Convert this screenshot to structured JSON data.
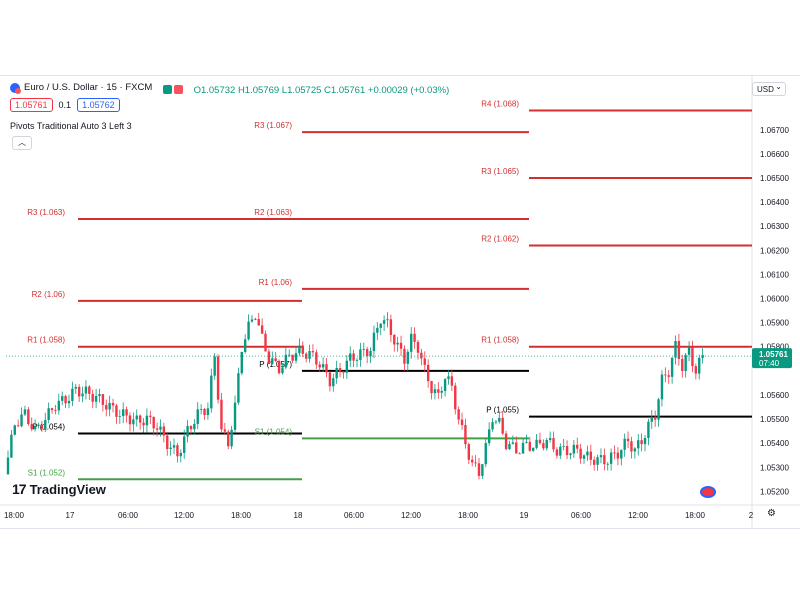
{
  "header": {
    "symbol": "Euro / U.S. Dollar · 15 · FXCM",
    "open": "O1.05732",
    "high": "H1.05769",
    "low": "L1.05725",
    "close": "C1.05761",
    "change": "+0.00029 (+0.03%)",
    "sell_price": "1.05761",
    "spread": "0.1",
    "buy_price": "1.05762",
    "indicator_name": "Pivots Traditional Auto 3 Left 3",
    "currency": "USD",
    "brand": "TradingView"
  },
  "colors": {
    "up": "#089981",
    "down": "#f23645",
    "pivot_r": "#d32f2f",
    "pivot_p": "#000000",
    "pivot_s": "#43a047",
    "price_label_bg": "#089981"
  },
  "chart_data": {
    "type": "candlestick",
    "ylim": [
      1.0516,
      1.0684
    ],
    "y_ticks": [
      "1.06700",
      "1.06600",
      "1.06500",
      "1.06400",
      "1.06300",
      "1.06200",
      "1.06100",
      "1.06000",
      "1.05900",
      "1.05800",
      "1.05600",
      "1.05500",
      "1.05400",
      "1.05300",
      "1.05200"
    ],
    "x_ticks": [
      "18:00",
      "17",
      "06:00",
      "12:00",
      "18:00",
      "18",
      "06:00",
      "12:00",
      "18:00",
      "19",
      "06:00",
      "12:00",
      "18:00",
      "2"
    ],
    "last_price": "1.05761",
    "last_price_value": 1.05761,
    "countdown": "07:40",
    "pivot_levels": [
      {
        "day": 0,
        "label": "R3 (1.063)",
        "value": 1.0633,
        "kind": "R"
      },
      {
        "day": 0,
        "label": "R2 (1.06)",
        "value": 1.0599,
        "kind": "R"
      },
      {
        "day": 0,
        "label": "R1 (1.058)",
        "value": 1.058,
        "kind": "R"
      },
      {
        "day": 0,
        "label": "P (1.054)",
        "value": 1.0544,
        "kind": "P"
      },
      {
        "day": 0,
        "label": "S1 (1.052)",
        "value": 1.0525,
        "kind": "S"
      },
      {
        "day": 1,
        "label": "R3 (1.067)",
        "value": 1.0669,
        "kind": "R"
      },
      {
        "day": 1,
        "label": "R2 (1.063)",
        "value": 1.0633,
        "kind": "R"
      },
      {
        "day": 1,
        "label": "R1 (1.06)",
        "value": 1.0604,
        "kind": "R"
      },
      {
        "day": 1,
        "label": "P (1.057)",
        "value": 1.057,
        "kind": "P"
      },
      {
        "day": 1,
        "label": "S1 (1.054)",
        "value": 1.0542,
        "kind": "S"
      },
      {
        "day": 2,
        "label": "R4 (1.068)",
        "value": 1.0678,
        "kind": "R"
      },
      {
        "day": 2,
        "label": "R3 (1.065)",
        "value": 1.065,
        "kind": "R"
      },
      {
        "day": 2,
        "label": "R2 (1.062)",
        "value": 1.0622,
        "kind": "R"
      },
      {
        "day": 2,
        "label": "R1 (1.058)",
        "value": 1.058,
        "kind": "R"
      },
      {
        "day": 2,
        "label": "P (1.055)",
        "value": 1.0551,
        "kind": "P"
      }
    ],
    "price_path": [
      [
        0,
        1.0527
      ],
      [
        3,
        1.0548
      ],
      [
        6,
        1.0552
      ],
      [
        9,
        1.0545
      ],
      [
        12,
        1.055
      ],
      [
        15,
        1.0556
      ],
      [
        18,
        1.0558
      ],
      [
        21,
        1.0562
      ],
      [
        24,
        1.0561
      ],
      [
        27,
        1.0559
      ],
      [
        30,
        1.0556
      ],
      [
        33,
        1.0553
      ],
      [
        36,
        1.0551
      ],
      [
        39,
        1.0549
      ],
      [
        42,
        1.055
      ],
      [
        45,
        1.0547
      ],
      [
        48,
        1.054
      ],
      [
        51,
        1.0535
      ],
      [
        54,
        1.0545
      ],
      [
        57,
        1.0552
      ],
      [
        60,
        1.0555
      ],
      [
        62,
        1.0576
      ],
      [
        64,
        1.0545
      ],
      [
        66,
        1.054
      ],
      [
        68,
        1.0555
      ],
      [
        70,
        1.058
      ],
      [
        72,
        1.0588
      ],
      [
        74,
        1.0594
      ],
      [
        76,
        1.0583
      ],
      [
        78,
        1.0575
      ],
      [
        81,
        1.0571
      ],
      [
        84,
        1.0576
      ],
      [
        87,
        1.0578
      ],
      [
        90,
        1.0577
      ],
      [
        93,
        1.0573
      ],
      [
        96,
        1.0566
      ],
      [
        99,
        1.057
      ],
      [
        102,
        1.0575
      ],
      [
        105,
        1.0577
      ],
      [
        108,
        1.0579
      ],
      [
        111,
        1.0592
      ],
      [
        113,
        1.0589
      ],
      [
        116,
        1.058
      ],
      [
        118,
        1.0575
      ],
      [
        120,
        1.0583
      ],
      [
        122,
        1.058
      ],
      [
        124,
        1.057
      ],
      [
        126,
        1.0563
      ],
      [
        128,
        1.0559
      ],
      [
        130,
        1.0568
      ],
      [
        132,
        1.0563
      ],
      [
        134,
        1.055
      ],
      [
        136,
        1.054
      ],
      [
        138,
        1.0531
      ],
      [
        140,
        1.0528
      ],
      [
        142,
        1.0538
      ],
      [
        144,
        1.0551
      ],
      [
        146,
        1.0548
      ],
      [
        148,
        1.054
      ],
      [
        151,
        1.0537
      ],
      [
        154,
        1.0539
      ],
      [
        157,
        1.0539
      ],
      [
        160,
        1.0541
      ],
      [
        163,
        1.0537
      ],
      [
        166,
        1.0537
      ],
      [
        169,
        1.0537
      ],
      [
        172,
        1.0534
      ],
      [
        175,
        1.0533
      ],
      [
        178,
        1.0533
      ],
      [
        181,
        1.0536
      ],
      [
        184,
        1.0541
      ],
      [
        186,
        1.0537
      ],
      [
        188,
        1.0541
      ],
      [
        190,
        1.0547
      ],
      [
        192,
        1.0552
      ],
      [
        194,
        1.0566
      ],
      [
        196,
        1.057
      ],
      [
        198,
        1.058
      ],
      [
        200,
        1.0572
      ],
      [
        202,
        1.0578
      ],
      [
        204,
        1.057
      ],
      [
        206,
        1.0576
      ]
    ]
  }
}
